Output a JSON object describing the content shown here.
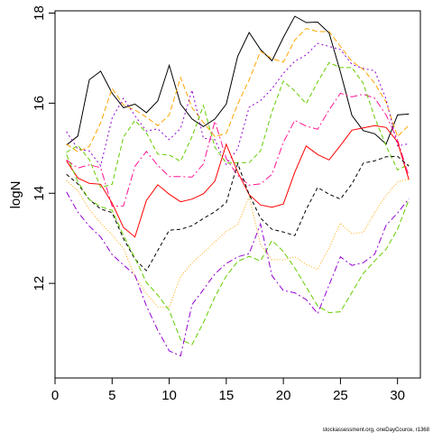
{
  "chart_data": {
    "type": "line",
    "title": "",
    "xlabel": "",
    "ylabel": "logN",
    "xlim": [
      0,
      32
    ],
    "ylim": [
      9.9,
      18.05
    ],
    "x_ticks": [
      0,
      5,
      10,
      15,
      20,
      25,
      30
    ],
    "y_ticks": [
      12,
      14,
      16,
      18
    ],
    "grid": false,
    "legend": "none",
    "x": [
      1,
      2,
      3,
      4,
      5,
      6,
      7,
      8,
      9,
      10,
      11,
      12,
      13,
      14,
      15,
      16,
      17,
      18,
      19,
      20,
      21,
      22,
      23,
      24,
      25,
      26,
      27,
      28,
      29,
      30,
      31
    ],
    "series": [
      {
        "color": "#000000",
        "dash": "solid",
        "values": [
          15.07,
          15.27,
          16.52,
          16.71,
          16.22,
          15.9,
          15.98,
          15.79,
          16.05,
          16.84,
          15.98,
          15.65,
          15.48,
          15.65,
          15.98,
          17.04,
          17.57,
          17.19,
          16.94,
          17.46,
          17.93,
          17.79,
          17.8,
          17.56,
          16.69,
          15.73,
          15.39,
          15.32,
          15.09,
          15.74,
          15.76
        ]
      },
      {
        "color": "#FFA500",
        "dash": "6,3",
        "values": [
          15.09,
          14.92,
          15.04,
          15.56,
          16.33,
          15.96,
          15.85,
          15.69,
          15.5,
          15.74,
          16.57,
          15.9,
          15.57,
          15.26,
          15.33,
          15.98,
          16.52,
          17.15,
          16.99,
          16.91,
          17.4,
          17.66,
          17.59,
          17.59,
          17.26,
          16.93,
          16.75,
          16.44,
          16.02,
          15.26,
          15.51
        ]
      },
      {
        "color": "#9400D3",
        "dash": "2,3",
        "values": [
          15.37,
          14.98,
          14.94,
          14.61,
          15.67,
          16.11,
          15.72,
          15.38,
          15.43,
          15.19,
          15.44,
          16.29,
          15.22,
          15.19,
          14.64,
          14.99,
          15.91,
          16.06,
          16.32,
          16.66,
          16.93,
          17.07,
          17.33,
          17.26,
          17.19,
          16.86,
          16.77,
          16.72,
          16.09,
          15.05,
          15.1
        ]
      },
      {
        "color": "#FF1493",
        "dash": "8,3,2,3",
        "values": [
          14.74,
          14.56,
          14.63,
          14.57,
          13.71,
          13.72,
          14.6,
          14.93,
          14.62,
          14.37,
          14.37,
          14.36,
          14.65,
          15.6,
          14.77,
          14.4,
          14.18,
          14.21,
          14.42,
          15.13,
          15.62,
          15.49,
          15.42,
          15.85,
          16.22,
          16.14,
          16.2,
          16.11,
          15.74,
          15.18,
          14.38
        ]
      },
      {
        "color": "#66CC00",
        "dash": "5,3",
        "values": [
          14.91,
          15.06,
          14.75,
          14.13,
          14.2,
          15.25,
          15.62,
          15.34,
          14.87,
          14.85,
          14.71,
          15.26,
          15.95,
          15.02,
          14.67,
          14.68,
          14.68,
          14.94,
          15.81,
          16.49,
          16.27,
          15.99,
          16.47,
          16.9,
          16.79,
          16.79,
          16.44,
          15.68,
          15.05,
          14.52,
          14.64
        ]
      },
      {
        "color": "#FF0000",
        "dash": "solid",
        "values": [
          14.72,
          14.34,
          14.22,
          14.2,
          13.78,
          13.24,
          13.03,
          13.84,
          14.19,
          13.98,
          13.81,
          13.87,
          13.99,
          14.27,
          15.09,
          14.47,
          13.97,
          13.74,
          13.69,
          13.76,
          14.47,
          15.05,
          14.86,
          14.74,
          15.06,
          15.4,
          15.45,
          15.5,
          15.46,
          15.14,
          14.3
        ]
      },
      {
        "color": "#000000",
        "dash": "4,3",
        "values": [
          14.42,
          14.21,
          13.86,
          13.65,
          13.57,
          12.99,
          12.54,
          12.28,
          12.73,
          13.18,
          13.2,
          13.28,
          13.44,
          13.59,
          13.79,
          14.66,
          13.97,
          13.45,
          13.2,
          13.14,
          13.06,
          13.64,
          14.13,
          13.98,
          13.87,
          14.21,
          14.67,
          14.72,
          14.81,
          14.82,
          14.6
        ]
      },
      {
        "color": "#FFA500",
        "dash": "1,2",
        "values": [
          14.28,
          14.06,
          13.64,
          13.34,
          13.08,
          12.77,
          12.15,
          11.77,
          11.48,
          11.47,
          12.15,
          12.46,
          12.68,
          12.92,
          13.15,
          13.31,
          13.92,
          12.86,
          12.53,
          12.52,
          12.59,
          12.42,
          12.31,
          12.79,
          13.34,
          13.1,
          13.14,
          13.57,
          13.95,
          14.25,
          14.32
        ]
      },
      {
        "color": "#66CC00",
        "dash": "6,3",
        "values": [
          14.86,
          14.25,
          13.86,
          13.7,
          13.62,
          13.06,
          12.56,
          12.02,
          11.74,
          11.4,
          10.75,
          10.64,
          11.13,
          11.7,
          12.16,
          12.49,
          12.6,
          12.5,
          12.95,
          12.71,
          12.34,
          11.92,
          11.5,
          11.35,
          11.37,
          11.8,
          12.22,
          12.5,
          12.76,
          13.2,
          13.86
        ]
      },
      {
        "color": "#9400D3",
        "dash": "7,3,2,3",
        "values": [
          14.03,
          13.58,
          13.27,
          13.03,
          12.64,
          12.41,
          12.18,
          11.5,
          10.96,
          10.5,
          10.39,
          11.53,
          11.86,
          12.21,
          12.44,
          12.59,
          12.66,
          13.32,
          12.17,
          11.84,
          11.79,
          11.64,
          11.33,
          11.96,
          12.59,
          12.4,
          12.46,
          12.65,
          13.29,
          13.56,
          13.88
        ]
      }
    ]
  },
  "footer_text": "stockassessment.org, oneDayCource, r1368"
}
